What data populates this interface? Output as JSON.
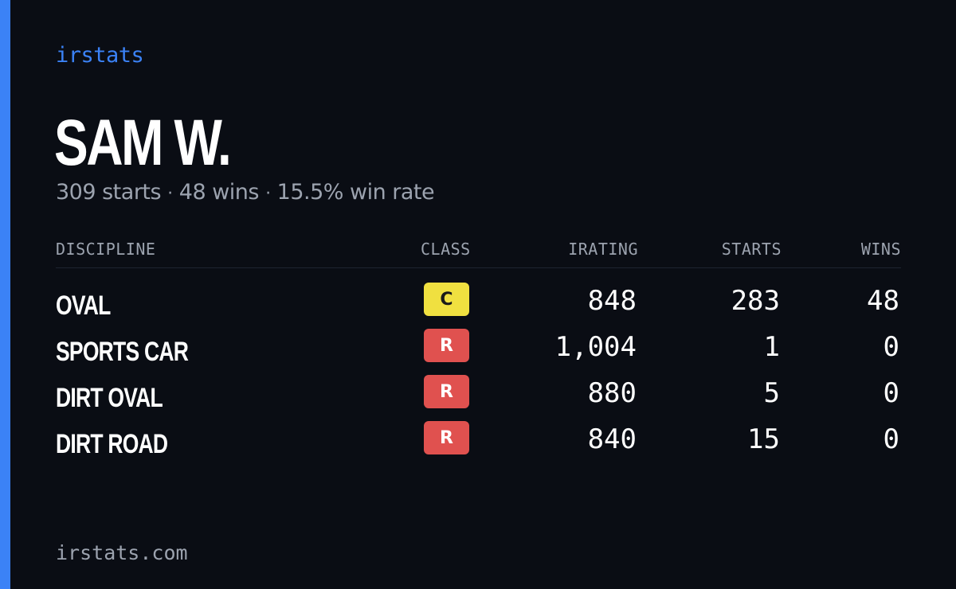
{
  "brand": "irstats",
  "driver": {
    "name": "SAM W.",
    "starts_text": "309 starts",
    "wins_text": "48 wins",
    "winrate_text": "15.5% win rate",
    "separator": "·"
  },
  "table": {
    "headers": {
      "discipline": "DISCIPLINE",
      "class": "CLASS",
      "irating": "IRATING",
      "starts": "STARTS",
      "wins": "WINS"
    },
    "rows": [
      {
        "discipline": "OVAL",
        "class": "C",
        "irating": "848",
        "starts": "283",
        "wins": "48"
      },
      {
        "discipline": "SPORTS CAR",
        "class": "R",
        "irating": "1,004",
        "starts": "1",
        "wins": "0"
      },
      {
        "discipline": "DIRT OVAL",
        "class": "R",
        "irating": "880",
        "starts": "5",
        "wins": "0"
      },
      {
        "discipline": "DIRT ROAD",
        "class": "R",
        "irating": "840",
        "starts": "15",
        "wins": "0"
      }
    ]
  },
  "colors": {
    "accent": "#3b82f6",
    "background": "#0a0d14",
    "class_c": "#f0e040",
    "class_r": "#e0514f",
    "muted_text": "#9ca3af"
  },
  "footer": "irstats.com"
}
